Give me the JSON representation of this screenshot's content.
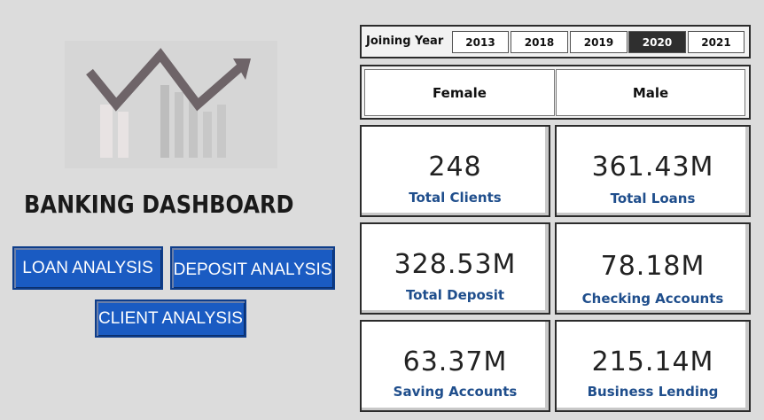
{
  "title": "BANKING DASHBOARD",
  "nav": {
    "loan": "LOAN ANALYSIS",
    "deposit": "DEPOSIT ANALYSIS",
    "client": "CLIENT ANALYSIS"
  },
  "filters": {
    "year_label": "Joining Year",
    "years": [
      "2013",
      "2018",
      "2019",
      "2020",
      "2021"
    ],
    "selected_year": "2020",
    "genders": [
      "Female",
      "Male"
    ]
  },
  "kpis": [
    {
      "value": "248",
      "label": "Total Clients"
    },
    {
      "value": "361.43M",
      "label": "Total Loans"
    },
    {
      "value": "328.53M",
      "label": "Total Deposit"
    },
    {
      "value": "78.18M",
      "label": "Checking Accounts"
    },
    {
      "value": "63.37M",
      "label": "Saving Accounts"
    },
    {
      "value": "215.14M",
      "label": "Business Lending"
    }
  ],
  "colors": {
    "accent": "#1a5bc2",
    "label": "#1f4e8c",
    "logo_line": "#6e6468"
  }
}
